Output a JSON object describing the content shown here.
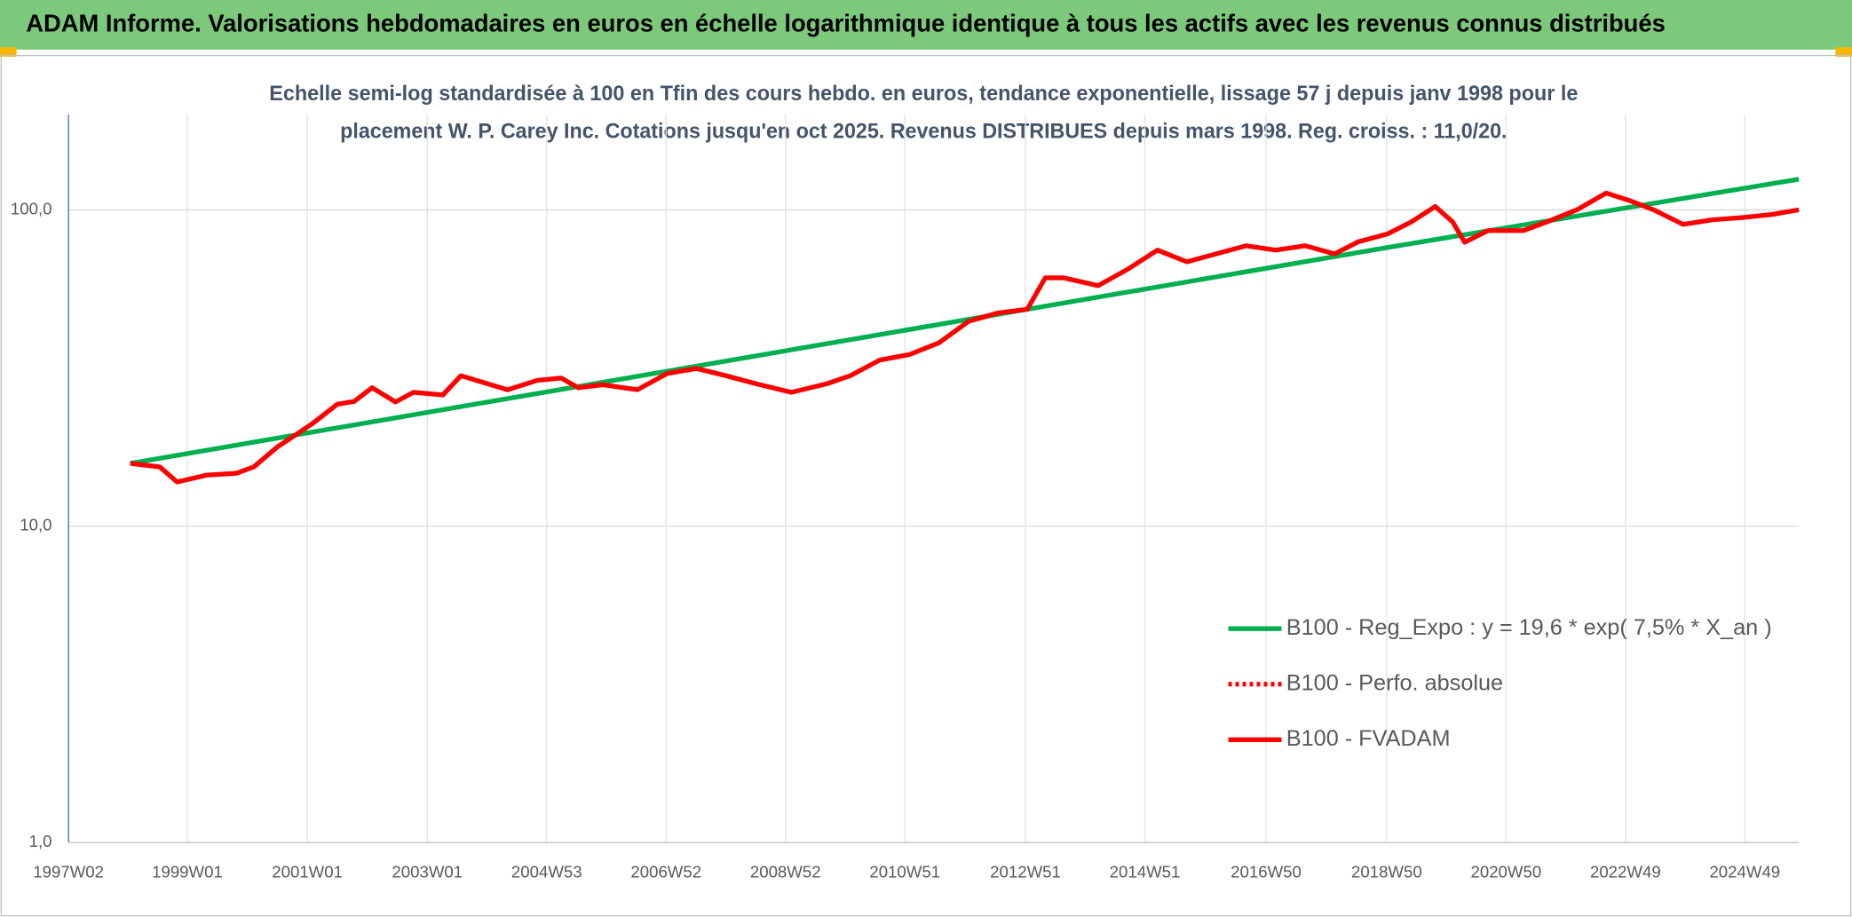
{
  "chart_data": {
    "type": "line",
    "title": "ADAM Informe. Valorisations hebdomadaires en euros en échelle logarithmique identique à tous les actifs avec les revenus connus distribués",
    "subtitle": [
      "Echelle semi-log standardisée à 100 en Tfin des cours hebdo. en euros, tendance exponentielle, lissage 57 j depuis janv 1998 pour le",
      "placement W. P. Carey Inc. Cotations jusqu'en oct 2025. Revenus DISTRIBUES depuis mars 1998. Reg. croiss. : 11,0/20."
    ],
    "log_scale": true,
    "grid": true,
    "legend": "right",
    "xlim": [
      1997.02,
      2025.86
    ],
    "xticks": [
      {
        "value": 1997.02,
        "label": "1997W02"
      },
      {
        "value": 1999.0,
        "label": "1999W01"
      },
      {
        "value": 2001.0,
        "label": "2001W01"
      },
      {
        "value": 2003.0,
        "label": "2003W01"
      },
      {
        "value": 2004.99,
        "label": "2004W53"
      },
      {
        "value": 2006.98,
        "label": "2006W52"
      },
      {
        "value": 2008.97,
        "label": "2008W52"
      },
      {
        "value": 2010.96,
        "label": "2010W51"
      },
      {
        "value": 2012.97,
        "label": "2012W51"
      },
      {
        "value": 2014.96,
        "label": "2014W51"
      },
      {
        "value": 2016.98,
        "label": "2016W50"
      },
      {
        "value": 2018.99,
        "label": "2018W50"
      },
      {
        "value": 2020.98,
        "label": "2020W50"
      },
      {
        "value": 2022.97,
        "label": "2022W49"
      },
      {
        "value": 2024.96,
        "label": "2024W49"
      }
    ],
    "ylim": [
      1,
      200
    ],
    "yticks": [
      {
        "value": 1,
        "label": "1,0"
      },
      {
        "value": 10,
        "label": "10,0"
      },
      {
        "value": 100,
        "label": "100,0"
      }
    ],
    "series": [
      {
        "name": "B100 - Reg_Expo : y = 19,6 * exp( 7,5% *  X_an )",
        "color": "#00b050",
        "style": "solid",
        "x": [
          1998.05,
          2005.0,
          2012.0,
          2019.0,
          2025.86
        ],
        "values": [
          15.8,
          26.6,
          45.0,
          76.0,
          125
        ]
      },
      {
        "name": "B100 - Perfo. absolue",
        "color": "#ff0000",
        "style": "dotted",
        "x": [],
        "values": []
      },
      {
        "name": "B100 - FVADAM",
        "color": "#ff0000",
        "style": "solid",
        "x": [
          1998.05,
          1998.54,
          1998.83,
          1999.32,
          1999.82,
          2000.11,
          2000.5,
          2000.8,
          2001.1,
          2001.5,
          2001.78,
          2002.08,
          2002.47,
          2002.77,
          2003.26,
          2003.56,
          2003.95,
          2004.34,
          2004.83,
          2005.23,
          2005.52,
          2005.92,
          2006.5,
          2007.0,
          2007.49,
          2007.98,
          2008.48,
          2009.07,
          2009.66,
          2010.05,
          2010.54,
          2011.04,
          2011.53,
          2012.02,
          2012.51,
          2013.0,
          2013.3,
          2013.6,
          2014.18,
          2014.68,
          2015.17,
          2015.66,
          2016.15,
          2016.65,
          2017.14,
          2017.63,
          2018.12,
          2018.52,
          2019.01,
          2019.4,
          2019.8,
          2020.09,
          2020.29,
          2020.68,
          2021.27,
          2021.66,
          2022.16,
          2022.65,
          2023.04,
          2023.44,
          2023.93,
          2024.42,
          2024.91,
          2025.41,
          2025.86
        ],
        "values": [
          15.8,
          15.4,
          13.8,
          14.5,
          14.7,
          15.4,
          17.8,
          19.4,
          21.2,
          24.3,
          24.8,
          27.4,
          24.7,
          26.5,
          26.0,
          29.9,
          28.4,
          27.0,
          28.9,
          29.4,
          27.4,
          28.0,
          27.0,
          30.4,
          31.5,
          29.9,
          28.2,
          26.5,
          28.2,
          29.9,
          33.5,
          34.9,
          38.0,
          44.4,
          47.2,
          48.5,
          61.0,
          61.0,
          57.6,
          65.0,
          74.6,
          68.5,
          72.6,
          77.0,
          74.6,
          77.0,
          72.6,
          79.3,
          84.0,
          91.6,
          102.5,
          91.6,
          79.0,
          86.0,
          86.0,
          91.6,
          100,
          113,
          107,
          100,
          90,
          93,
          94.5,
          96.7,
          100
        ]
      }
    ]
  }
}
